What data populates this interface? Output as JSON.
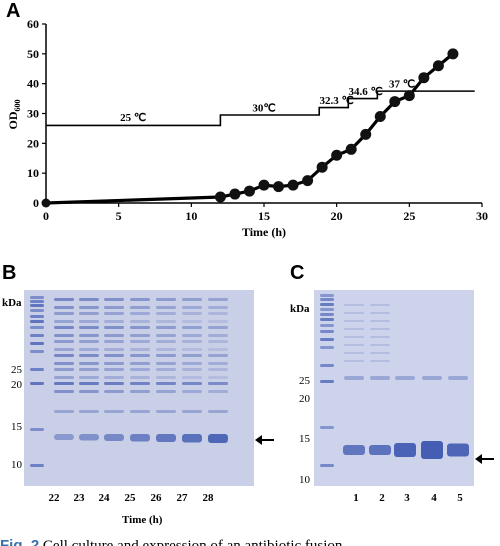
{
  "panelA": {
    "letter": "A",
    "chart_data": {
      "type": "line",
      "xlabel": "Time (h)",
      "ylabel": "OD600",
      "ylabel_main": "OD",
      "ylabel_sub": "600",
      "xlim": [
        0,
        30
      ],
      "ylim": [
        0,
        60
      ],
      "xticks": [
        "0",
        "5",
        "10",
        "15",
        "20",
        "25",
        "30"
      ],
      "yticks": [
        "0",
        "10",
        "20",
        "30",
        "40",
        "50",
        "60"
      ],
      "series": [
        {
          "x": [
            0,
            12,
            13,
            14,
            15,
            16,
            17,
            18,
            19,
            20,
            21,
            22,
            23,
            24,
            25,
            26,
            27,
            28
          ],
          "y": [
            0,
            2,
            3,
            4,
            6,
            5.5,
            6,
            7.5,
            12,
            16,
            18,
            23,
            29,
            34,
            36,
            42,
            46,
            50
          ]
        }
      ],
      "temperature_profile": {
        "x": [
          0,
          12,
          12,
          18.8,
          18.8,
          20.8,
          20.8,
          22.8,
          22.8,
          29.5
        ],
        "y": [
          26,
          26,
          29.5,
          29.5,
          32,
          32,
          35,
          35,
          37.5,
          37.5
        ]
      },
      "annotations": [
        {
          "text": "25 ℃",
          "x": 6,
          "y": 27.5
        },
        {
          "text": "30℃",
          "x": 15,
          "y": 30.7
        },
        {
          "text": "32.3 ℃",
          "x": 20,
          "y": 33.2
        },
        {
          "text": "34.6 ℃",
          "x": 22,
          "y": 36.2
        },
        {
          "text": "37 ℃",
          "x": 24.5,
          "y": 38.7
        }
      ]
    }
  },
  "panelB": {
    "letter": "B",
    "kda": "kDa",
    "mw_labels": [
      "25",
      "20",
      "15",
      "10"
    ],
    "lane_labels": [
      "22",
      "23",
      "24",
      "25",
      "26",
      "27",
      "28"
    ],
    "xtitle": "Time (h)"
  },
  "panelC": {
    "letter": "C",
    "kda": "kDa",
    "mw_labels": [
      "25",
      "20",
      "15",
      "10"
    ],
    "lane_labels": [
      "1",
      "2",
      "3",
      "4",
      "5"
    ]
  },
  "caption": {
    "prefix": "Fig. 2",
    "text": "Cell culture and expression of an antibiotic fusion"
  },
  "colors": {
    "gel_bg": "#c7cde6",
    "band": "#3d57b0",
    "marker": "#111111"
  }
}
